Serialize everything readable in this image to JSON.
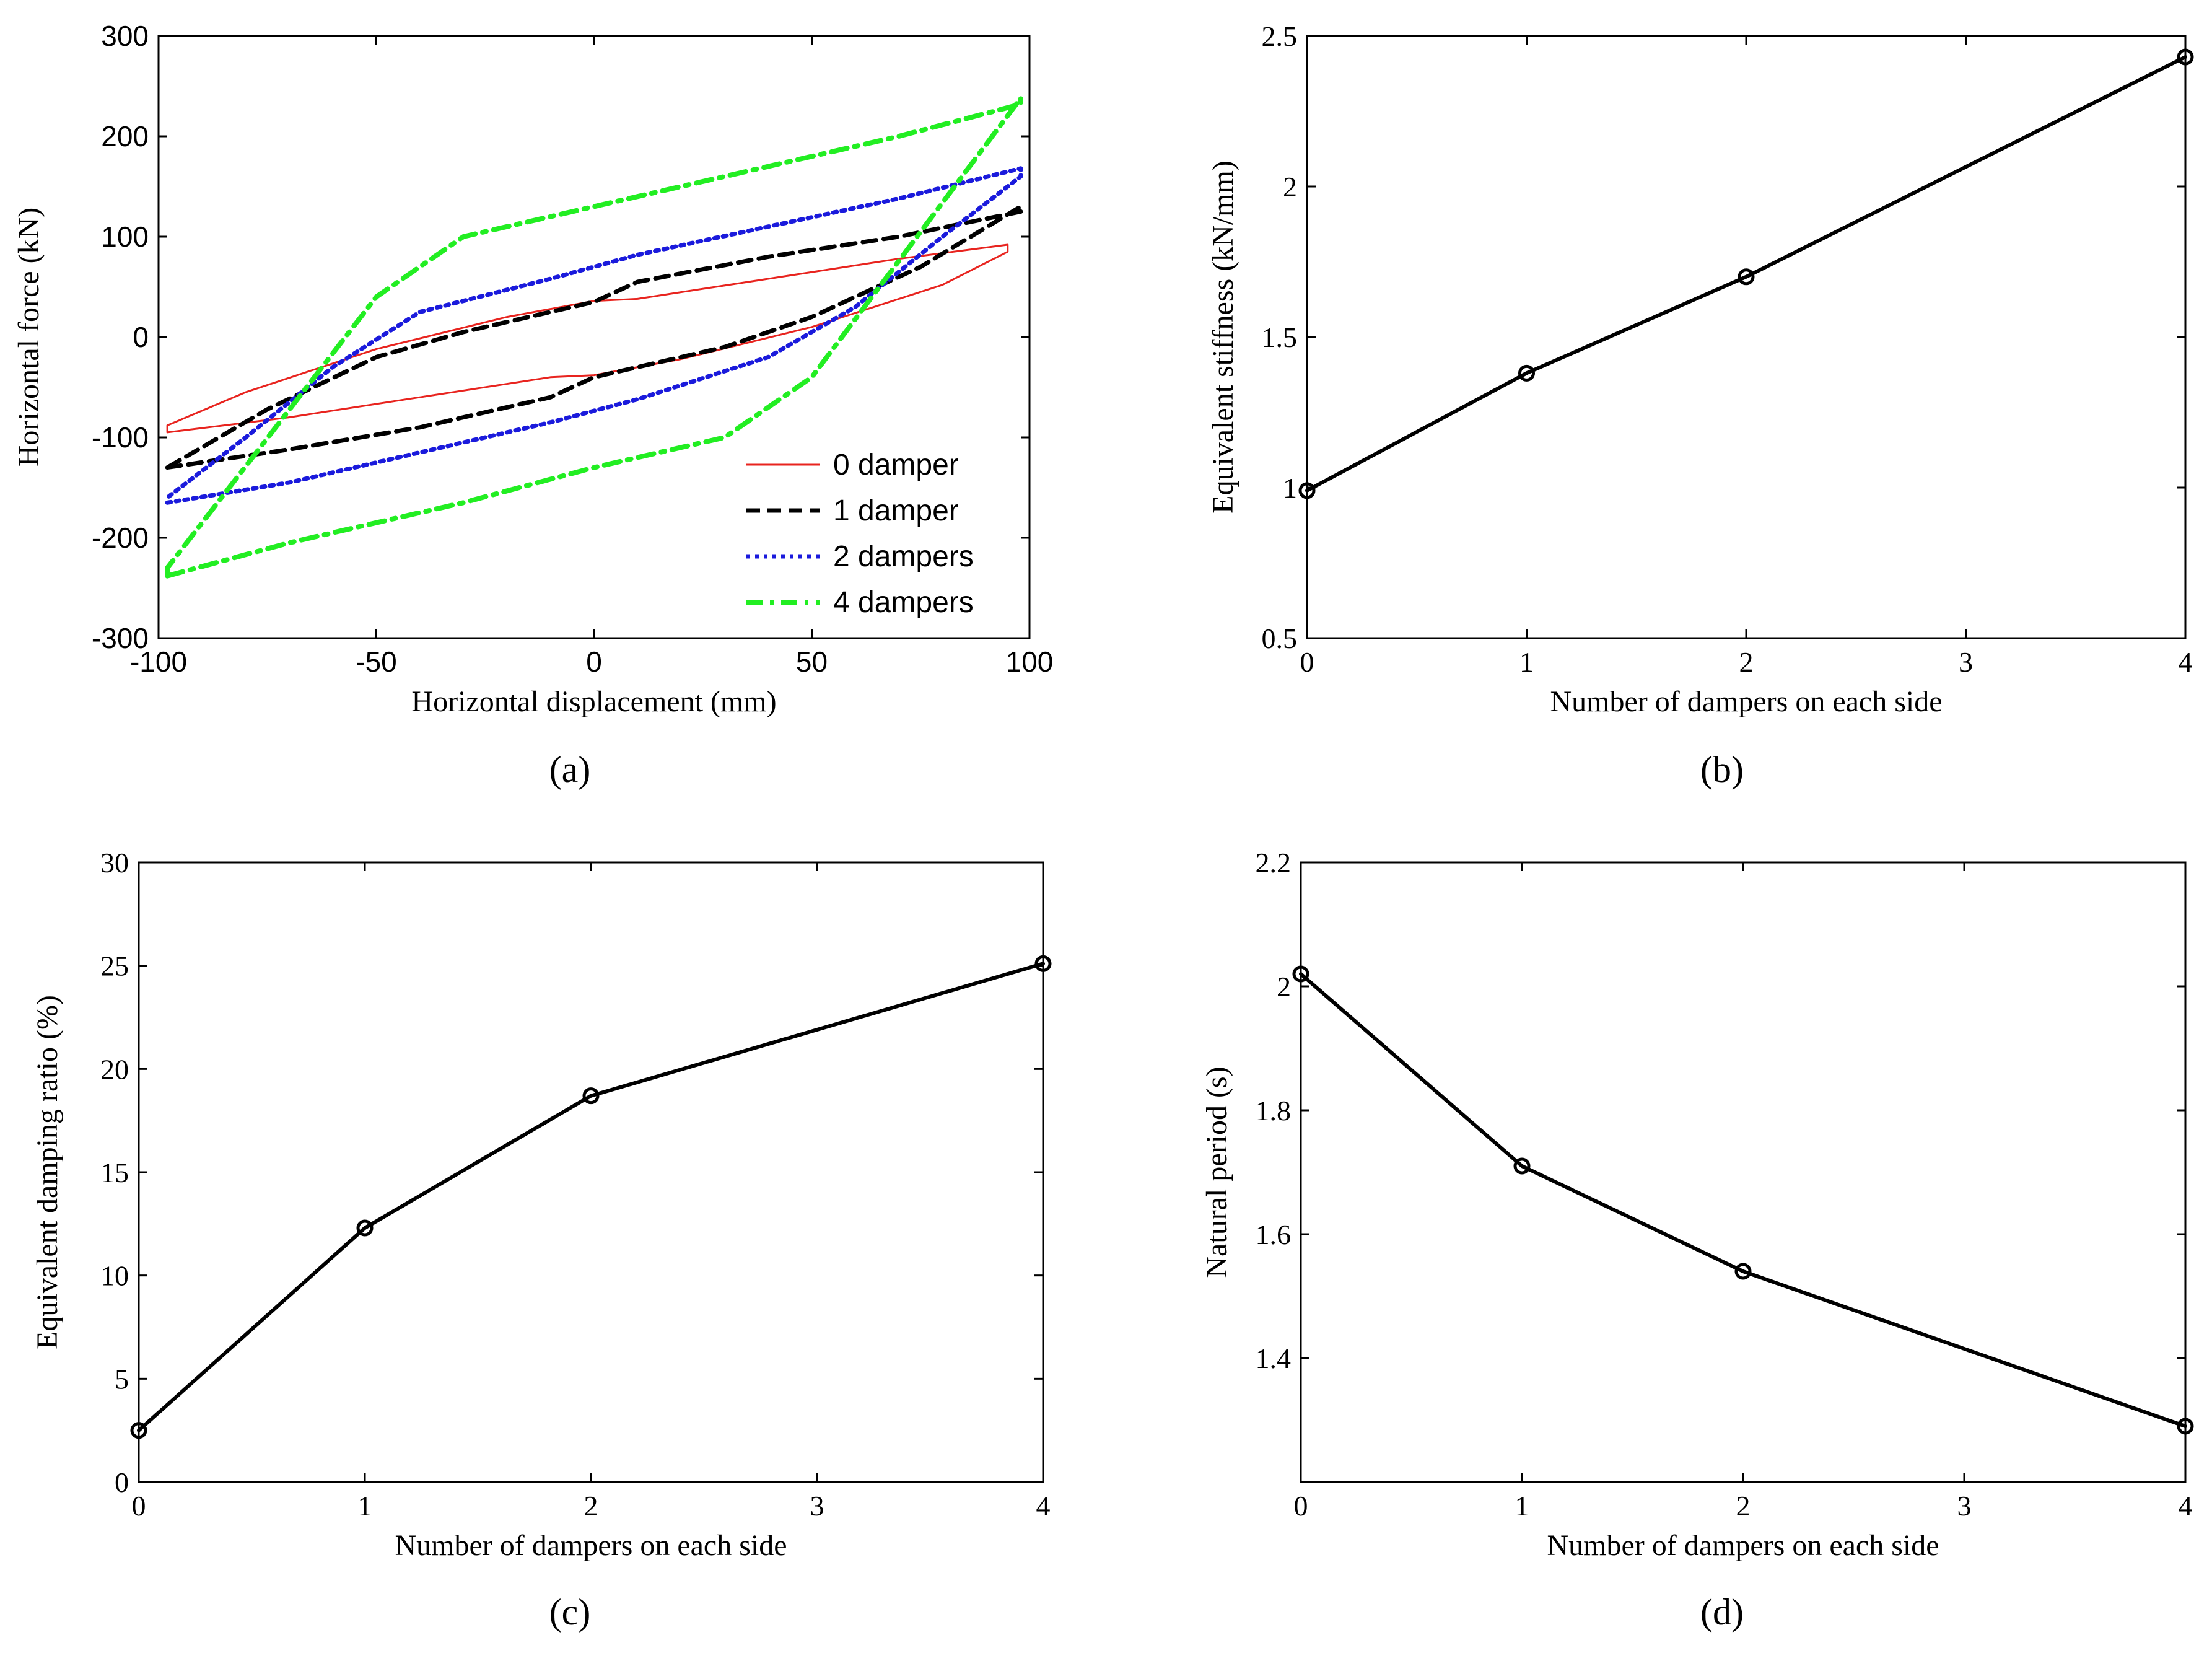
{
  "chart_data": [
    {
      "id": "a",
      "type": "line",
      "panel_label": "(a)",
      "title": "",
      "xlabel": "Horizontal displacement (mm)",
      "ylabel": "Horizontal force (kN)",
      "xlim": [
        -100,
        100
      ],
      "ylim": [
        -300,
        300
      ],
      "xticks": [
        -100,
        -50,
        0,
        50,
        100
      ],
      "yticks": [
        -300,
        -200,
        -100,
        0,
        100,
        200,
        300
      ],
      "grid": false,
      "legend_position": "bottom-right",
      "series": [
        {
          "name": "0 damper",
          "color": "#e8241f",
          "style": "solid",
          "x": [
            -98,
            -70,
            -40,
            -10,
            0,
            20,
            50,
            80,
            95,
            95,
            70,
            40,
            10,
            0,
            -20,
            -50,
            -80,
            -98,
            -98
          ],
          "y": [
            -95,
            -80,
            -60,
            -40,
            -38,
            -22,
            10,
            52,
            85,
            92,
            78,
            58,
            38,
            36,
            20,
            -12,
            -55,
            -88,
            -95
          ]
        },
        {
          "name": "1 damper",
          "color": "#000000",
          "style": "dashed",
          "x": [
            -98,
            -70,
            -40,
            -10,
            0,
            30,
            50,
            75,
            98,
            98,
            70,
            40,
            10,
            0,
            -30,
            -50,
            -75,
            -98
          ],
          "y": [
            -130,
            -112,
            -90,
            -60,
            -40,
            -10,
            20,
            70,
            130,
            125,
            100,
            80,
            55,
            35,
            5,
            -20,
            -72,
            -130
          ]
        },
        {
          "name": "2 dampers",
          "color": "#1a1adc",
          "style": "dotted",
          "x": [
            -98,
            -70,
            -40,
            -10,
            10,
            40,
            60,
            80,
            98,
            98,
            70,
            40,
            10,
            -10,
            -40,
            -60,
            -80,
            -98
          ],
          "y": [
            -165,
            -145,
            -115,
            -85,
            -62,
            -20,
            30,
            100,
            160,
            168,
            138,
            110,
            82,
            58,
            25,
            -30,
            -100,
            -160
          ]
        },
        {
          "name": "4 dampers",
          "color": "#22ee22",
          "style": "dashdot",
          "x": [
            -98,
            -70,
            -30,
            0,
            30,
            50,
            98,
            98,
            70,
            30,
            0,
            -30,
            -50,
            -98,
            -98
          ],
          "y": [
            -238,
            -205,
            -165,
            -130,
            -100,
            -40,
            238,
            232,
            200,
            160,
            130,
            100,
            40,
            -230,
            -238
          ]
        }
      ]
    },
    {
      "id": "b",
      "type": "line",
      "panel_label": "(b)",
      "title": "",
      "xlabel": "Number of dampers on each side",
      "ylabel": "Equivalent stiffness (kN/mm)",
      "xlim": [
        0,
        4
      ],
      "ylim": [
        0.5,
        2.5
      ],
      "xticks": [
        0,
        1,
        2,
        3,
        4
      ],
      "yticks": [
        0.5,
        1,
        1.5,
        2,
        2.5
      ],
      "grid": false,
      "series": [
        {
          "name": "stiffness",
          "x": [
            0,
            1,
            2,
            4
          ],
          "y": [
            0.99,
            1.38,
            1.7,
            2.43
          ]
        }
      ]
    },
    {
      "id": "c",
      "type": "line",
      "panel_label": "(c)",
      "title": "",
      "xlabel": "Number of dampers on each side",
      "ylabel": "Equivalent damping ratio (%)",
      "xlim": [
        0,
        4
      ],
      "ylim": [
        0,
        30
      ],
      "xticks": [
        0,
        1,
        2,
        3,
        4
      ],
      "yticks": [
        0,
        5,
        10,
        15,
        20,
        25,
        30
      ],
      "grid": false,
      "series": [
        {
          "name": "damping ratio",
          "x": [
            0,
            1,
            2,
            4
          ],
          "y": [
            2.5,
            12.3,
            18.7,
            25.1
          ]
        }
      ]
    },
    {
      "id": "d",
      "type": "line",
      "panel_label": "(d)",
      "title": "",
      "xlabel": "Number of dampers on each side",
      "ylabel": "Natural period (s)",
      "xlim": [
        0,
        4
      ],
      "ylim": [
        1.2,
        2.2
      ],
      "xticks": [
        0,
        1,
        2,
        3,
        4
      ],
      "yticks": [
        1.4,
        1.6,
        1.8,
        2,
        2.2
      ],
      "grid": false,
      "series": [
        {
          "name": "natural period",
          "x": [
            0,
            1,
            2,
            4
          ],
          "y": [
            2.02,
            1.71,
            1.54,
            1.29
          ]
        }
      ]
    }
  ]
}
